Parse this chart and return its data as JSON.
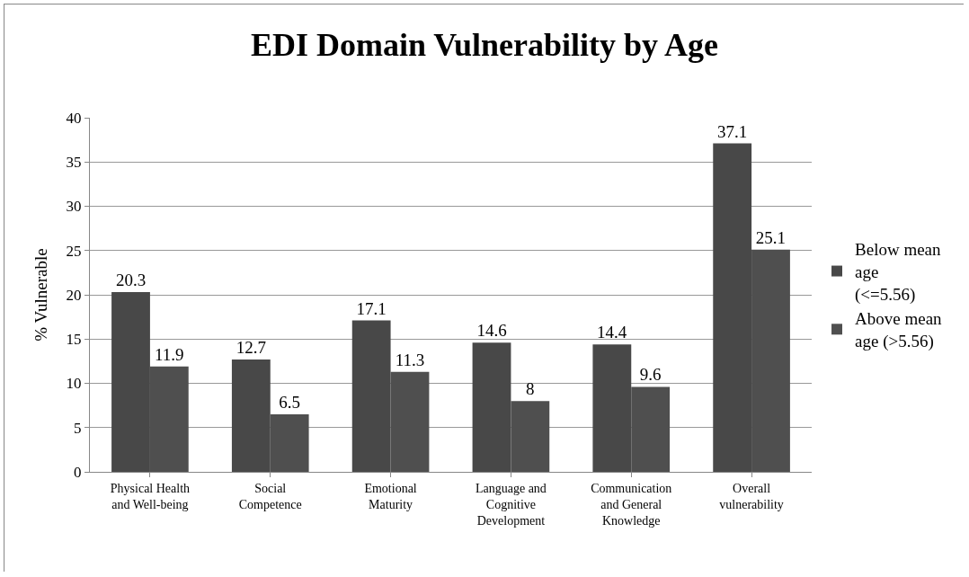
{
  "chart_data": {
    "type": "bar",
    "title": "EDI Domain Vulnerability by Age",
    "ylabel": "% Vulnerable",
    "categories": [
      "Physical Health and Well-being",
      "Social Competence",
      "Emotional Maturity",
      "Language and Cognitive Development",
      "Communication and General Knowledge",
      "Overall vulnerability"
    ],
    "series": [
      {
        "name": "Below mean age (<=5.56)",
        "color": "#484848",
        "values": [
          20.3,
          12.7,
          17.1,
          14.6,
          14.4,
          37.1
        ]
      },
      {
        "name": "Above mean age (>5.56)",
        "color": "#4f4f4f",
        "values": [
          11.9,
          6.5,
          11.3,
          8,
          9.6,
          25.1
        ]
      }
    ],
    "ylim": [
      0,
      40
    ],
    "yticks": [
      0,
      5,
      10,
      15,
      20,
      25,
      30,
      35,
      40
    ],
    "grid": "y",
    "legend": "right",
    "data_labels": true
  }
}
